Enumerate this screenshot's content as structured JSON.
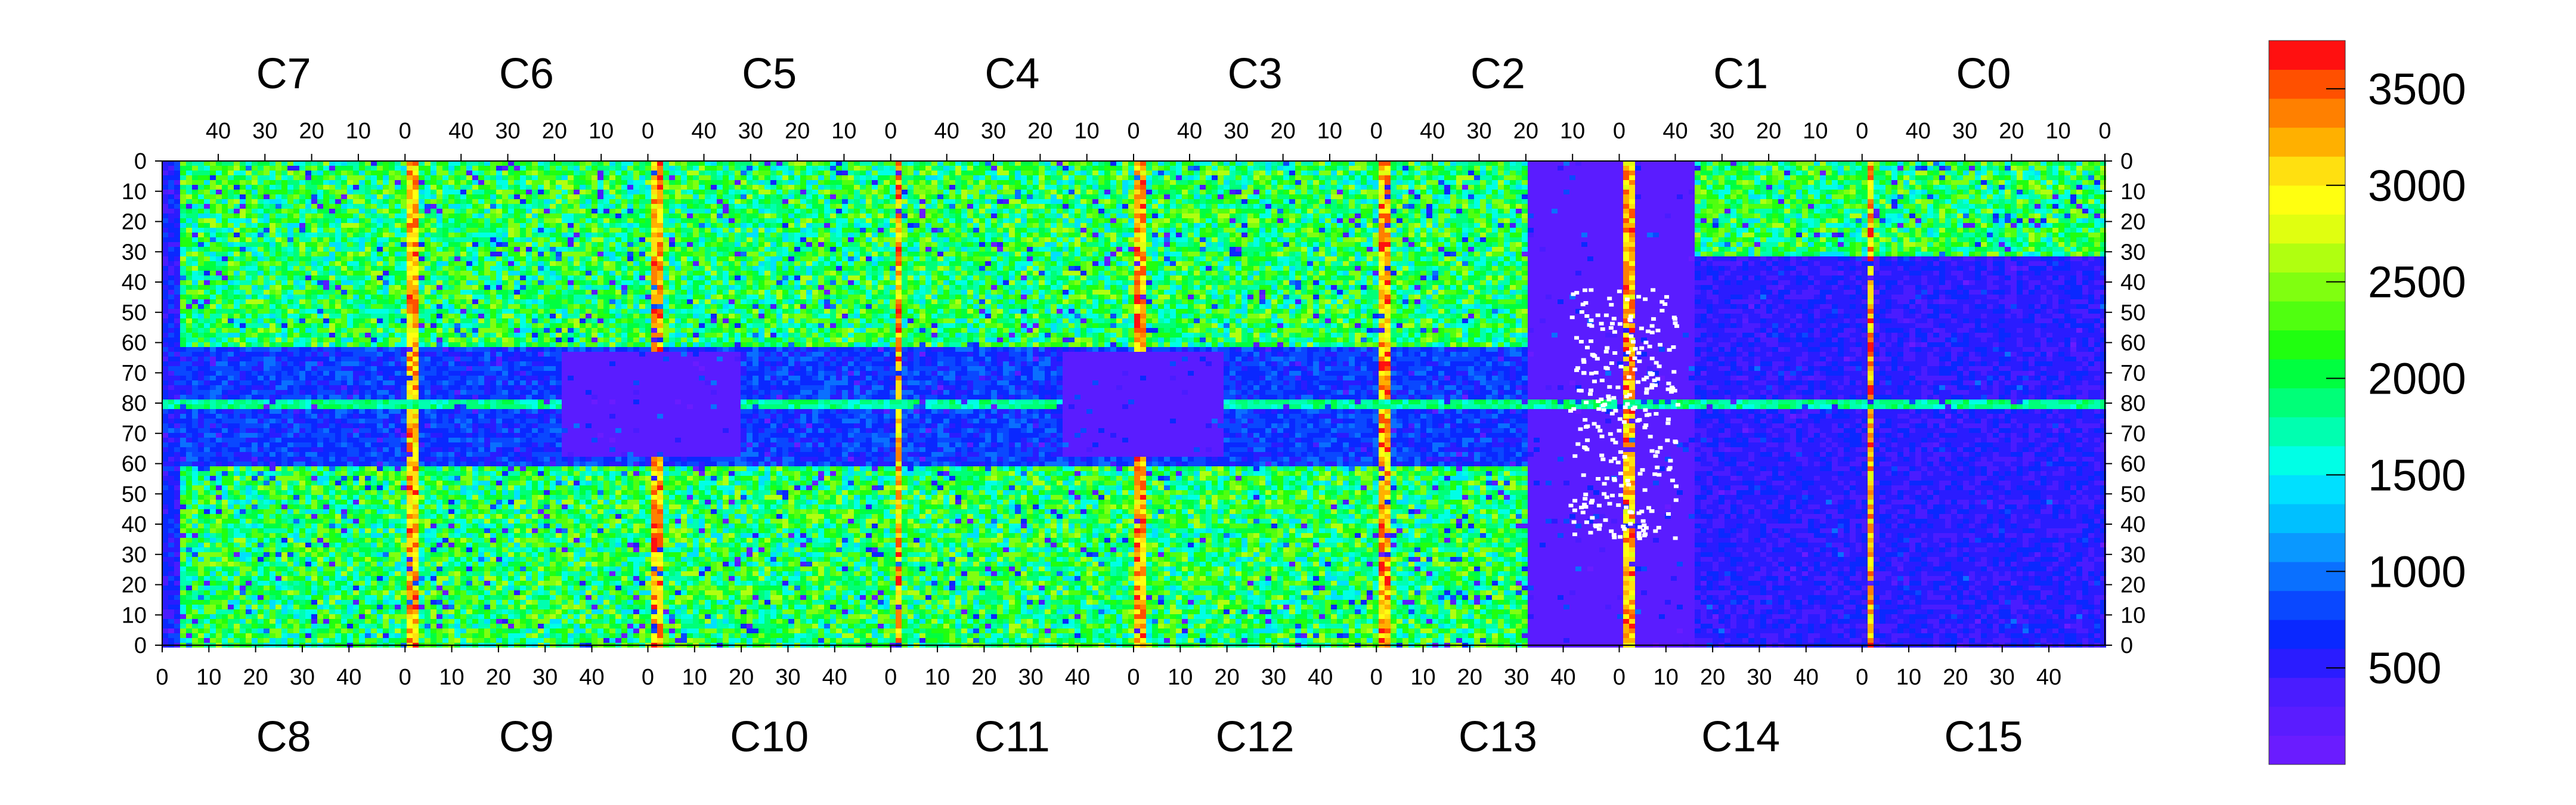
{
  "chart_data": {
    "type": "heatmap",
    "title": "",
    "xlabel": "",
    "ylabel": "",
    "top_chips": [
      "C7",
      "C6",
      "C5",
      "C4",
      "C3",
      "C2",
      "C1",
      "C0"
    ],
    "bottom_chips": [
      "C8",
      "C9",
      "C10",
      "C11",
      "C12",
      "C13",
      "C14",
      "C15"
    ],
    "chip_columns": 52,
    "top_x_tick_labels": [
      "40",
      "30",
      "20",
      "10",
      "0"
    ],
    "bottom_x_tick_labels": [
      "0",
      "10",
      "20",
      "30",
      "40"
    ],
    "y_tick_labels": [
      "0",
      "10",
      "20",
      "30",
      "40",
      "50",
      "60",
      "70",
      "80",
      "70",
      "60",
      "50",
      "40",
      "30",
      "20",
      "10",
      "0"
    ],
    "rows_per_half": 80,
    "colorbar": {
      "min": 0,
      "max": 3750,
      "tick_labels": [
        "500",
        "1000",
        "1500",
        "2000",
        "2500",
        "3000",
        "3500"
      ],
      "tick_values": [
        500,
        1000,
        1500,
        2000,
        2500,
        3000,
        3500
      ],
      "colors": [
        "#6a1cff",
        "#5a1cff",
        "#4a1cff",
        "#2a1cff",
        "#0a28ff",
        "#0a48ff",
        "#0a70ff",
        "#0a98ff",
        "#00c0ff",
        "#00e0ff",
        "#00ffe6",
        "#00ffb0",
        "#00ff78",
        "#00ff40",
        "#20ff10",
        "#50ff10",
        "#80ff10",
        "#b0ff10",
        "#e0ff10",
        "#ffff10",
        "#ffe010",
        "#ffb000",
        "#ff8000",
        "#ff5000",
        "#ff1010"
      ]
    }
  }
}
